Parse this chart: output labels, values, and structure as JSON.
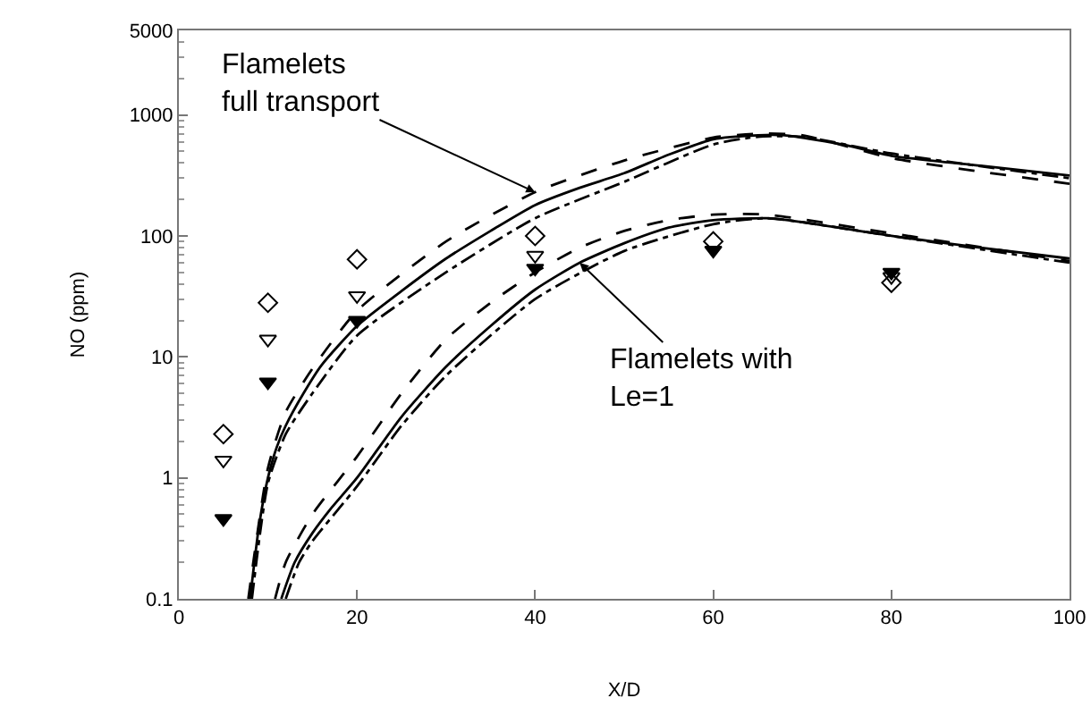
{
  "chart_data": {
    "type": "line",
    "xlabel": "X/D",
    "ylabel": "NO (ppm)",
    "log": "y",
    "xlim": [
      0,
      100
    ],
    "xticks": [
      0,
      20,
      40,
      60,
      80,
      100
    ],
    "ylim": [
      0.1,
      5000
    ],
    "yticks": [
      0.1,
      1,
      10,
      100,
      1000,
      5000
    ],
    "series": [
      {
        "color": "#000000",
        "line_style": "solid",
        "marker": "none",
        "x": [
          8,
          9,
          10,
          11,
          12,
          14,
          16,
          20,
          25,
          30,
          35,
          40,
          45,
          50,
          55,
          60,
          65,
          68,
          75,
          80,
          90,
          100
        ],
        "values": [
          0.1,
          0.4,
          1,
          1.8,
          2.7,
          5,
          8.5,
          18,
          35,
          65,
          110,
          180,
          250,
          330,
          470,
          630,
          680,
          680,
          560,
          460,
          380,
          316
        ]
      },
      {
        "color": "#000000",
        "line_style": "dashed",
        "marker": "none",
        "x": [
          7.8,
          10,
          12,
          15,
          20,
          30,
          40,
          50,
          60,
          65,
          70,
          80,
          90,
          100
        ],
        "values": [
          0.1,
          1.2,
          3.5,
          8,
          24,
          90,
          230,
          420,
          650,
          700,
          680,
          440,
          340,
          270
        ]
      },
      {
        "color": "#000000",
        "line_style": "dashdot",
        "marker": "none",
        "x": [
          8.2,
          10,
          12,
          15,
          20,
          30,
          40,
          50,
          60,
          65,
          70,
          80,
          100
        ],
        "values": [
          0.1,
          0.9,
          2.3,
          5,
          15,
          50,
          140,
          280,
          570,
          660,
          660,
          480,
          300
        ]
      },
      {
        "color": "#000000",
        "line_style": "solid",
        "marker": "none",
        "x": [
          11.5,
          13,
          15,
          17,
          20,
          25,
          30,
          35,
          40,
          45,
          50,
          55,
          60,
          66,
          70,
          80,
          90,
          100
        ],
        "values": [
          0.1,
          0.2,
          0.35,
          0.55,
          1,
          3.2,
          8.3,
          18,
          36,
          60,
          87,
          117,
          135,
          140,
          130,
          100,
          80,
          65
        ]
      },
      {
        "color": "#000000",
        "line_style": "dashed",
        "marker": "none",
        "x": [
          10.8,
          12,
          15,
          20,
          25,
          30,
          35,
          40,
          45,
          50,
          55,
          60,
          66,
          80,
          100
        ],
        "values": [
          0.1,
          0.2,
          0.5,
          1.5,
          5,
          14,
          28,
          50,
          80,
          110,
          135,
          150,
          150,
          105,
          62
        ]
      },
      {
        "color": "#000000",
        "line_style": "dashdot",
        "marker": "none",
        "x": [
          12,
          13.5,
          15,
          20,
          25,
          30,
          40,
          50,
          60,
          66,
          80,
          100
        ],
        "values": [
          0.1,
          0.2,
          0.3,
          0.85,
          2.7,
          7,
          30,
          75,
          125,
          140,
          100,
          60
        ]
      },
      {
        "type": "scatter",
        "color": "#000000",
        "marker": "diamond-open",
        "x": [
          5,
          10,
          20,
          40,
          60,
          80
        ],
        "values": [
          2.3,
          28,
          64,
          100,
          90,
          41
        ]
      },
      {
        "type": "scatter",
        "color": "#000000",
        "marker": "triangle-down-open",
        "x": [
          5,
          10,
          20,
          40,
          60,
          80
        ],
        "values": [
          1.4,
          14,
          32,
          69,
          null,
          46
        ]
      },
      {
        "type": "scatter",
        "color": "#000000",
        "marker": "triangle-down",
        "x": [
          5,
          10,
          20,
          40,
          60,
          80
        ],
        "values": [
          0.46,
          6.2,
          20,
          54,
          76,
          50
        ]
      }
    ],
    "annotations": [
      {
        "text": "Flamelets\nfull transport",
        "x": 40,
        "y": 230
      },
      {
        "text": "Flamelets with\nLe=1",
        "x": 45,
        "y": 60
      }
    ]
  }
}
